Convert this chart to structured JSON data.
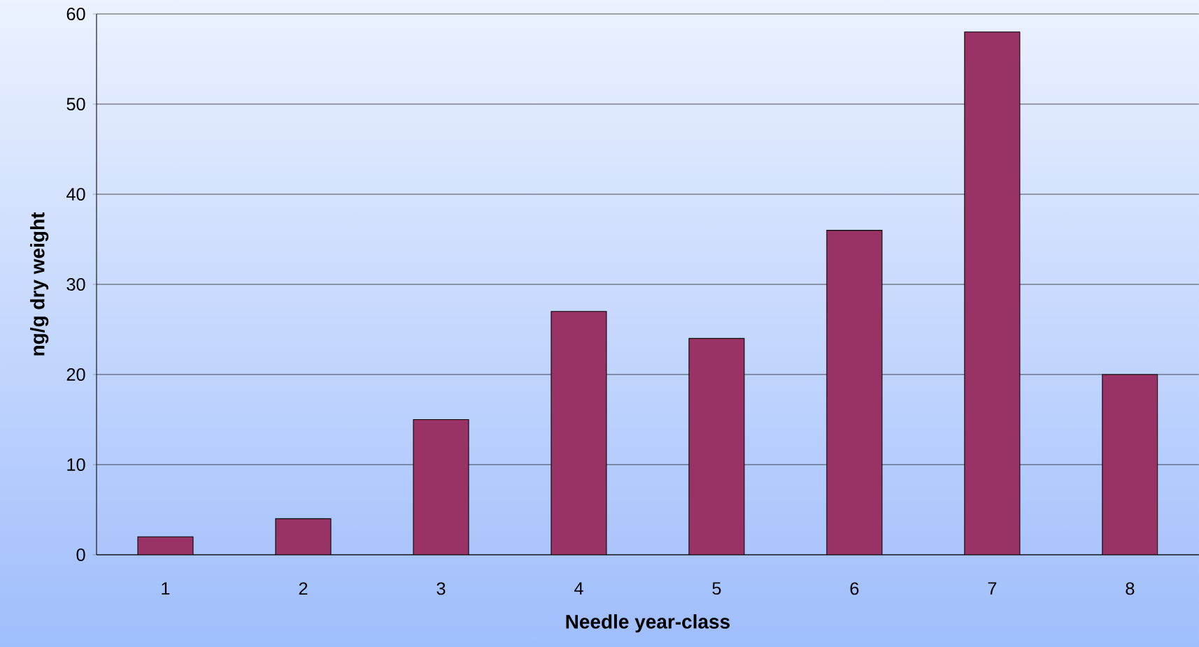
{
  "chart_data": {
    "type": "bar",
    "xlabel": "Needle year-class",
    "ylabel": "ng/g dry weight",
    "categories": [
      "1",
      "2",
      "3",
      "4",
      "5",
      "6",
      "7",
      "8"
    ],
    "values": [
      2,
      4,
      15,
      27,
      24,
      36,
      58,
      20
    ],
    "color": "#993366",
    "ylim": [
      0,
      60
    ],
    "yticks": [
      0,
      10,
      20,
      30,
      40,
      50,
      60
    ],
    "grid": "y"
  }
}
